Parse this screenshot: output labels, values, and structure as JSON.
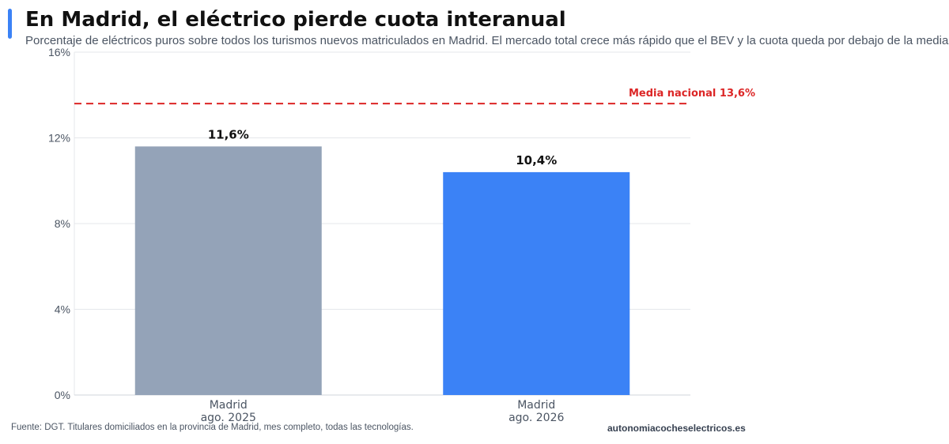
{
  "header": {
    "title": "En Madrid, el eléctrico pierde cuota interanual",
    "subtitle": "Porcentaje de eléctricos puros sobre todos los turismos nuevos matriculados en Madrid. El mercado total crece más rápido que el BEV y la cuota queda por debajo de la media."
  },
  "footer": {
    "source": "Fuente: DGT. Titulares domiciliados en la provincia de Madrid, mes completo, todas las tecnologías.",
    "site": "autonomiacocheselectricos.es"
  },
  "colors": {
    "accent": "#3b82f6",
    "bar_previous": "#94a3b8",
    "bar_current": "#3b82f6",
    "reference_line": "#dc2626"
  },
  "chart_data": {
    "type": "bar",
    "categories": [
      [
        "Madrid",
        "ago. 2025"
      ],
      [
        "Madrid",
        "ago. 2026"
      ]
    ],
    "values": [
      11.6,
      10.4
    ],
    "value_labels": [
      "11,6%",
      "10,4%"
    ],
    "ylim": [
      0,
      16
    ],
    "yticks": [
      0,
      4,
      8,
      12,
      16
    ],
    "ytick_labels": [
      "0%",
      "4%",
      "8%",
      "12%",
      "16%"
    ],
    "grid": true,
    "reference_line": {
      "value": 13.6,
      "label": "Media nacional 13,6%"
    }
  }
}
